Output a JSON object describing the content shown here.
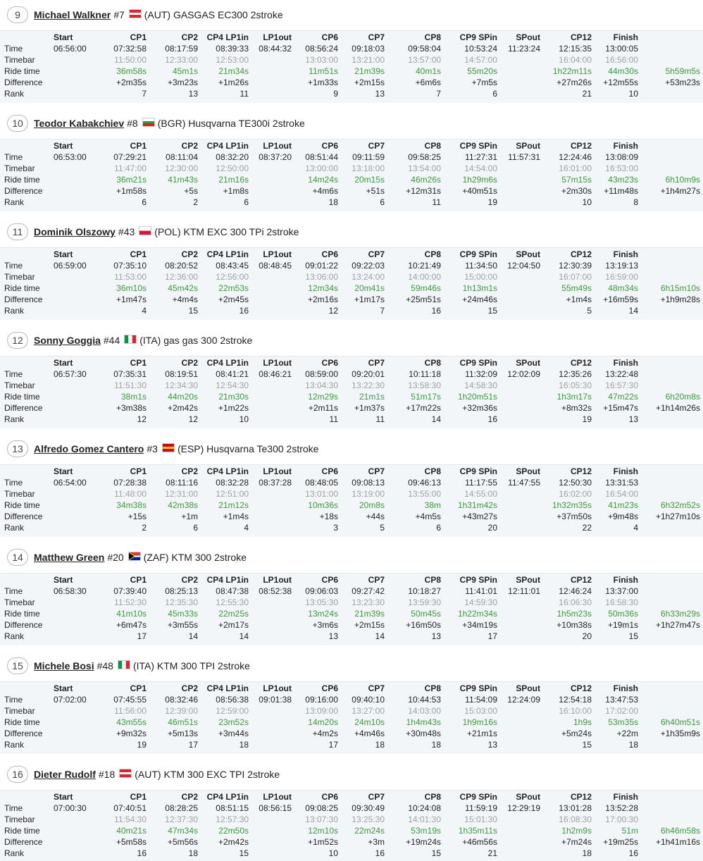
{
  "columns": [
    "Start",
    "CP1",
    "CP2",
    "CP4 LP1in",
    "LP1out",
    "CP6",
    "CP7",
    "CP8",
    "CP9 SPin",
    "SPout",
    "CP12",
    "Finish"
  ],
  "row_labels": [
    "Time",
    "Timebar",
    "Ride time",
    "Difference",
    "Rank"
  ],
  "riders": [
    {
      "position": 9,
      "name": "Michael Walkner",
      "number": "#7",
      "team": "(AUT) GASGAS EC300 2stroke",
      "rows": [
        [
          "06:56:00",
          "07:32:58",
          "08:17:59",
          "08:39:33",
          "08:44:32",
          "08:56:24",
          "09:18:03",
          "09:58:04",
          "10:53:24",
          "11:23:24",
          "12:15:35",
          "13:00:05",
          null
        ],
        [
          null,
          "11:50:00",
          "12:33:00",
          "12:53:00",
          null,
          "13:03:00",
          "13:21:00",
          "13:57:00",
          "14:57:00",
          null,
          "16:04:00",
          "16:56:00",
          null
        ],
        [
          null,
          "36m58s",
          "45m1s",
          "21m34s",
          null,
          "11m51s",
          "21m39s",
          "40m1s",
          "55m20s",
          null,
          "1h22m11s",
          "44m30s",
          "5h59m5s"
        ],
        [
          null,
          "+2m35s",
          "+3m23s",
          "+1m26s",
          null,
          "+1m33s",
          "+2m15s",
          "+6m6s",
          "+7m5s",
          null,
          "+27m26s",
          "+12m55s",
          "+53m23s"
        ],
        [
          null,
          7,
          13,
          11,
          null,
          9,
          13,
          7,
          6,
          null,
          21,
          10,
          null
        ]
      ]
    },
    {
      "position": 10,
      "name": "Teodor Kabakchiev",
      "number": "#8",
      "team": "(BGR) Husqvarna TE300i 2stroke",
      "rows": [
        [
          "06:53:00",
          "07:29:21",
          "08:11:04",
          "08:32:20",
          "08:37:20",
          "08:51:44",
          "09:11:59",
          "09:58:25",
          "11:27:31",
          "11:57:31",
          "12:24:46",
          "13:08:09",
          null
        ],
        [
          null,
          "11:47:00",
          "12:30:00",
          "12:50:00",
          null,
          "13:00:00",
          "13:18:00",
          "13:54:00",
          "14:54:00",
          null,
          "16:01:00",
          "16:53:00",
          null
        ],
        [
          null,
          "36m21s",
          "41m43s",
          "21m16s",
          null,
          "14m24s",
          "20m15s",
          "46m26s",
          "1h29m6s",
          null,
          "57m15s",
          "43m23s",
          "6h10m9s"
        ],
        [
          null,
          "+1m58s",
          "+5s",
          "+1m8s",
          null,
          "+4m6s",
          "+51s",
          "+12m31s",
          "+40m51s",
          null,
          "+2m30s",
          "+11m48s",
          "+1h4m27s"
        ],
        [
          null,
          6,
          2,
          6,
          null,
          18,
          6,
          11,
          19,
          null,
          10,
          8,
          null
        ]
      ]
    },
    {
      "position": 11,
      "name": "Dominik Olszowy",
      "number": "#43",
      "team": "(POL) KTM EXC 300 TPi 2stroke",
      "rows": [
        [
          "06:59:00",
          "07:35:10",
          "08:20:52",
          "08:43:45",
          "08:48:45",
          "09:01:22",
          "09:22:03",
          "10:21:49",
          "11:34:50",
          "12:04:50",
          "12:30:39",
          "13:19:13",
          null
        ],
        [
          null,
          "11:53:00",
          "12:36:00",
          "12:56:00",
          null,
          "13:06:00",
          "13:24:00",
          "14:00:00",
          "15:00:00",
          null,
          "16:07:00",
          "16:59:00",
          null
        ],
        [
          null,
          "36m10s",
          "45m42s",
          "22m53s",
          null,
          "12m34s",
          "20m41s",
          "59m46s",
          "1h13m1s",
          null,
          "55m49s",
          "48m34s",
          "6h15m10s"
        ],
        [
          null,
          "+1m47s",
          "+4m4s",
          "+2m45s",
          null,
          "+2m16s",
          "+1m17s",
          "+25m51s",
          "+24m46s",
          null,
          "+1m4s",
          "+16m59s",
          "+1h9m28s"
        ],
        [
          null,
          4,
          15,
          16,
          null,
          12,
          7,
          16,
          15,
          null,
          5,
          14,
          null
        ]
      ]
    },
    {
      "position": 12,
      "name": "Sonny Goggia",
      "number": "#44",
      "team": "(ITA) gas gas 300 2stroke",
      "rows": [
        [
          "06:57:30",
          "07:35:31",
          "08:19:51",
          "08:41:21",
          "08:46:21",
          "08:59:00",
          "09:20:01",
          "10:11:18",
          "11:32:09",
          "12:02:09",
          "12:35:26",
          "13:22:48",
          null
        ],
        [
          null,
          "11:51:30",
          "12:34:30",
          "12:54:30",
          null,
          "13:04:30",
          "13:22:30",
          "13:58:30",
          "14:58:30",
          null,
          "16:05:30",
          "16:57:30",
          null
        ],
        [
          null,
          "38m1s",
          "44m20s",
          "21m30s",
          null,
          "12m29s",
          "21m1s",
          "51m17s",
          "1h20m51s",
          null,
          "1h3m17s",
          "47m22s",
          "6h20m8s"
        ],
        [
          null,
          "+3m38s",
          "+2m42s",
          "+1m22s",
          null,
          "+2m11s",
          "+1m37s",
          "+17m22s",
          "+32m36s",
          null,
          "+8m32s",
          "+15m47s",
          "+1h14m26s"
        ],
        [
          null,
          12,
          12,
          10,
          null,
          11,
          11,
          14,
          16,
          null,
          19,
          13,
          null
        ]
      ]
    },
    {
      "position": 13,
      "name": "Alfredo Gomez Cantero",
      "number": "#3",
      "team": "(ESP) Husqvarna Te300 2stroke",
      "rows": [
        [
          "06:54:00",
          "07:28:38",
          "08:11:16",
          "08:32:28",
          "08:37:28",
          "08:48:05",
          "09:08:13",
          "09:46:13",
          "11:17:55",
          "11:47:55",
          "12:50:30",
          "13:31:53",
          null
        ],
        [
          null,
          "11:48:00",
          "12:31:00",
          "12:51:00",
          null,
          "13:01:00",
          "13:19:00",
          "13:55:00",
          "14:55:00",
          null,
          "16:02:00",
          "16:54:00",
          null
        ],
        [
          null,
          "34m38s",
          "42m38s",
          "21m12s",
          null,
          "10m36s",
          "20m8s",
          "38m",
          "1h31m42s",
          null,
          "1h32m35s",
          "41m23s",
          "6h32m52s"
        ],
        [
          null,
          "+15s",
          "+1m",
          "+1m4s",
          null,
          "+18s",
          "+44s",
          "+4m5s",
          "+43m27s",
          null,
          "+37m50s",
          "+9m48s",
          "+1h27m10s"
        ],
        [
          null,
          2,
          6,
          4,
          null,
          3,
          5,
          6,
          20,
          null,
          22,
          4,
          null
        ]
      ]
    },
    {
      "position": 14,
      "name": "Matthew Green",
      "number": "#20",
      "team": "(ZAF) KTM 300 2stroke",
      "rows": [
        [
          "06:58:30",
          "07:39:40",
          "08:25:13",
          "08:47:38",
          "08:52:38",
          "09:06:03",
          "09:27:42",
          "10:18:27",
          "11:41:01",
          "12:11:01",
          "12:46:24",
          "13:37:00",
          null
        ],
        [
          null,
          "11:52:30",
          "12:35:30",
          "12:55:30",
          null,
          "13:05:30",
          "13:23:30",
          "13:59:30",
          "14:59:30",
          null,
          "16:06:30",
          "16:58:30",
          null
        ],
        [
          null,
          "41m10s",
          "45m33s",
          "22m25s",
          null,
          "13m24s",
          "21m39s",
          "50m45s",
          "1h22m34s",
          null,
          "1h5m23s",
          "50m36s",
          "6h33m29s"
        ],
        [
          null,
          "+6m47s",
          "+3m55s",
          "+2m17s",
          null,
          "+3m6s",
          "+2m15s",
          "+16m50s",
          "+34m19s",
          null,
          "+10m38s",
          "+19m1s",
          "+1h27m47s"
        ],
        [
          null,
          17,
          14,
          14,
          null,
          13,
          14,
          13,
          17,
          null,
          20,
          15,
          null
        ]
      ]
    },
    {
      "position": 15,
      "name": "Michele Bosi",
      "number": "#48",
      "team": "(ITA) KTM 300 TPI 2stroke",
      "rows": [
        [
          "07:02:00",
          "07:45:55",
          "08:32:46",
          "08:56:38",
          "09:01:38",
          "09:16:00",
          "09:40:10",
          "10:44:53",
          "11:54:09",
          "12:24:09",
          "12:54:18",
          "13:47:53",
          null
        ],
        [
          null,
          "11:56:00",
          "12:39:00",
          "12:59:00",
          null,
          "13:09:00",
          "13:27:00",
          "14:03:00",
          "15:03:00",
          null,
          "16:10:00",
          "17:02:00",
          null
        ],
        [
          null,
          "43m55s",
          "46m51s",
          "23m52s",
          null,
          "14m20s",
          "24m10s",
          "1h4m43s",
          "1h9m16s",
          null,
          "1h9s",
          "53m35s",
          "6h40m51s"
        ],
        [
          null,
          "+9m32s",
          "+5m13s",
          "+3m44s",
          null,
          "+4m2s",
          "+4m46s",
          "+30m48s",
          "+21m1s",
          null,
          "+5m24s",
          "+22m",
          "+1h35m9s"
        ],
        [
          null,
          19,
          17,
          18,
          null,
          17,
          18,
          18,
          13,
          null,
          15,
          18,
          null
        ]
      ]
    },
    {
      "position": 16,
      "name": "Dieter Rudolf",
      "number": "#18",
      "team": "(AUT) KTM 300 EXC TPI 2stroke",
      "rows": [
        [
          "07:00:30",
          "07:40:51",
          "08:28:25",
          "08:51:15",
          "08:56:15",
          "09:08:25",
          "09:30:49",
          "10:24:08",
          "11:59:19",
          "12:29:19",
          "13:01:28",
          "13:52:28",
          null
        ],
        [
          null,
          "11:54:30",
          "12:37:30",
          "12:57:30",
          null,
          "13:07:30",
          "13:25:30",
          "14:01:30",
          "15:01:30",
          null,
          "16:08:30",
          "17:00:30",
          null
        ],
        [
          null,
          "40m21s",
          "47m34s",
          "22m50s",
          null,
          "12m10s",
          "22m24s",
          "53m19s",
          "1h35m11s",
          null,
          "1h2m9s",
          "51m",
          "6h46m58s"
        ],
        [
          null,
          "+5m58s",
          "+5m56s",
          "+2m42s",
          null,
          "+1m52s",
          "+3m",
          "+19m24s",
          "+46m56s",
          null,
          "+7m24s",
          "+19m25s",
          "+1h41m16s"
        ],
        [
          null,
          16,
          18,
          15,
          null,
          10,
          16,
          15,
          21,
          null,
          18,
          16,
          null
        ]
      ]
    }
  ]
}
